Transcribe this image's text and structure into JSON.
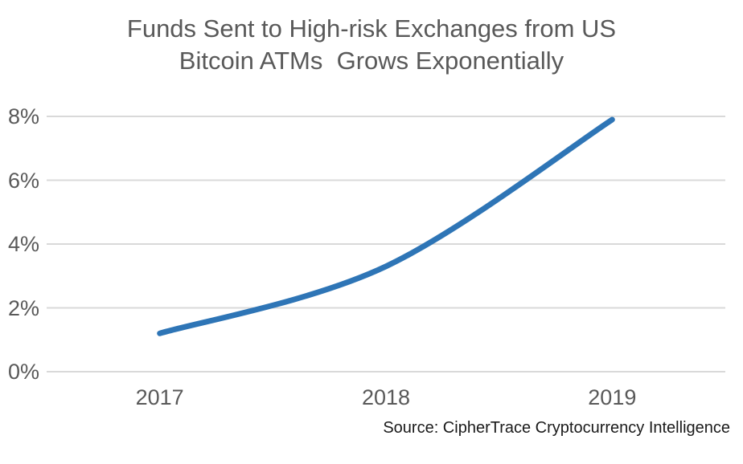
{
  "title": {
    "line1": "Funds Sent to High-risk Exchanges from US",
    "line2": "Bitcoin ATMs  Grows Exponentially"
  },
  "source": "Source: CipherTrace Cryptocurrency Intelligence",
  "colors": {
    "line": "#2E75B6",
    "gridline": "#D9D9D9",
    "title_text": "#595959",
    "axis_text": "#595959",
    "source_text": "#1A1A1A",
    "background": "#FFFFFF"
  },
  "chart_data": {
    "type": "line",
    "title": "Funds Sent to High-risk Exchanges from US Bitcoin ATMs Grows Exponentially",
    "categories": [
      "2017",
      "2018",
      "2019"
    ],
    "values": [
      1.2,
      3.3,
      7.9
    ],
    "xlabel": "",
    "ylabel": "",
    "ylim": [
      0,
      8
    ],
    "y_ticks": [
      0,
      2,
      4,
      6,
      8
    ],
    "y_tick_labels": [
      "0%",
      "2%",
      "4%",
      "6%",
      "8%"
    ],
    "grid": "horizontal",
    "legend": "none",
    "smooth": true,
    "line_width": 7
  }
}
